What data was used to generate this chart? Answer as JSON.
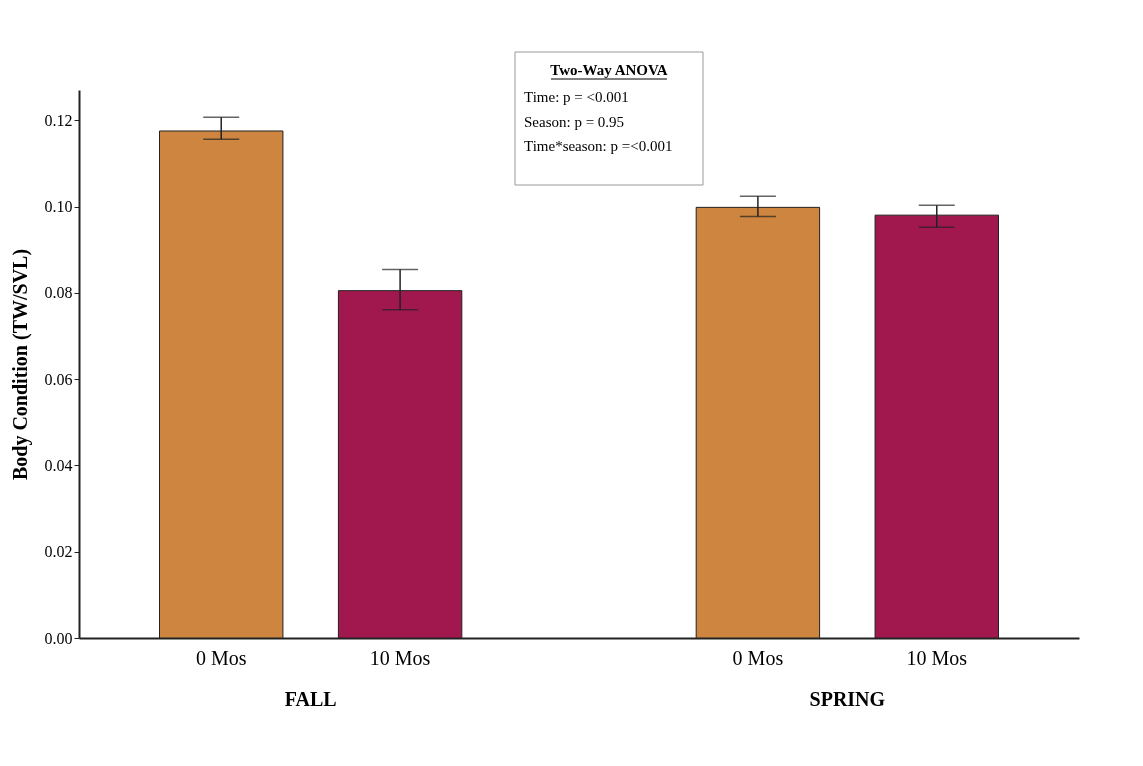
{
  "chart_data": {
    "type": "bar",
    "ylabel": "Body Condition (TW/SVL)",
    "categories": [
      "0 Mos",
      "10 Mos",
      "0 Mos",
      "10 Mos"
    ],
    "values": [
      0.1175,
      0.0805,
      0.0998,
      0.098
    ],
    "colors": [
      "#cd853f",
      "#a0184e",
      "#cd853f",
      "#a0184e"
    ],
    "errors": [
      [
        0.1156,
        0.1207
      ],
      [
        0.0761,
        0.0854
      ],
      [
        0.0977,
        0.1024
      ],
      [
        0.0952,
        0.1003
      ]
    ],
    "ylim": [
      0,
      0.127
    ],
    "yticks": [
      {
        "value": 0,
        "label": "0.00"
      },
      {
        "value": 0.02,
        "label": "0.02"
      },
      {
        "value": 0.04,
        "label": "0.04"
      },
      {
        "value": 0.06,
        "label": "0.06"
      },
      {
        "value": 0.08,
        "label": "0.08"
      },
      {
        "value": 0.1,
        "label": "0.10"
      },
      {
        "value": 0.12,
        "label": "0.12"
      }
    ],
    "grid": false,
    "annotations": [
      "FALL",
      "SPRING",
      "Two-Way ANOVA",
      "Time: p = <0.001",
      "Season: p = 0.95",
      "Time*season: p =<0.001"
    ]
  }
}
